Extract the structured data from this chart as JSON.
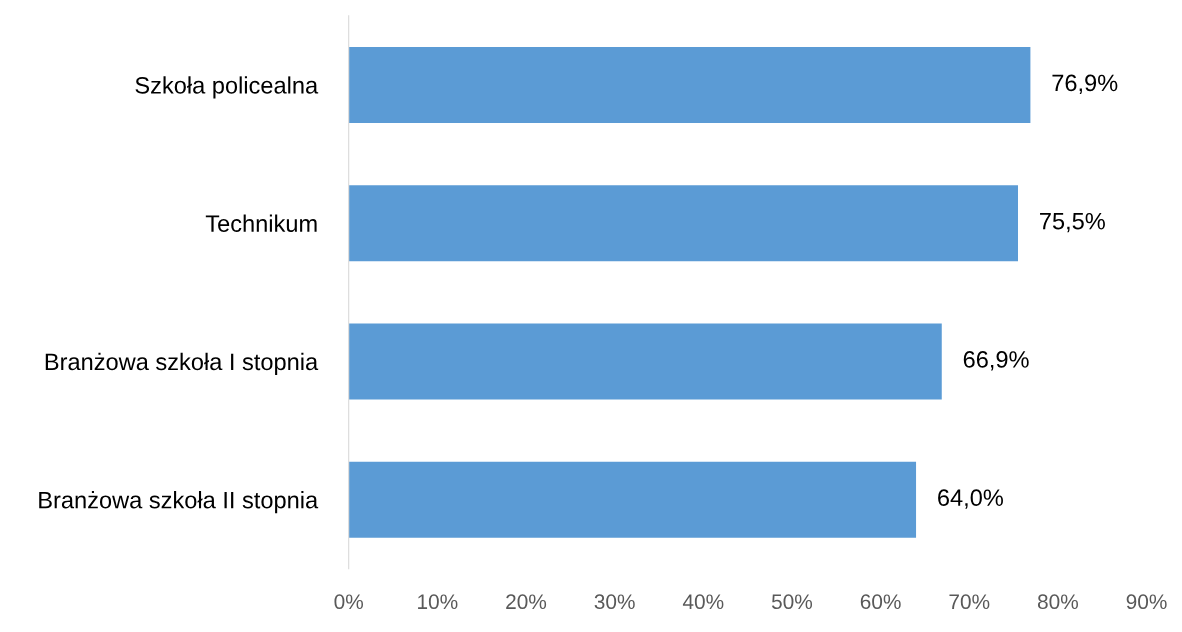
{
  "chart_data": {
    "type": "bar",
    "orientation": "horizontal",
    "categories": [
      "Szkoła policealna",
      "Technikum",
      "Branżowa szkoła I stopnia",
      "Branżowa szkoła II stopnia"
    ],
    "values": [
      76.9,
      75.5,
      66.9,
      64.0
    ],
    "value_labels": [
      "76,9%",
      "75,5%",
      "66,9%",
      "64,0%"
    ],
    "color": "#5b9bd5",
    "xlim": [
      0,
      90
    ],
    "xticks": [
      {
        "value": 0,
        "label": "0%"
      },
      {
        "value": 10,
        "label": "10%"
      },
      {
        "value": 20,
        "label": "20%"
      },
      {
        "value": 30,
        "label": "30%"
      },
      {
        "value": 40,
        "label": "40%"
      },
      {
        "value": 50,
        "label": "50%"
      },
      {
        "value": 60,
        "label": "60%"
      },
      {
        "value": 70,
        "label": "70%"
      },
      {
        "value": 80,
        "label": "80%"
      },
      {
        "value": 90,
        "label": "90%"
      }
    ],
    "grid": false,
    "legend": false
  }
}
